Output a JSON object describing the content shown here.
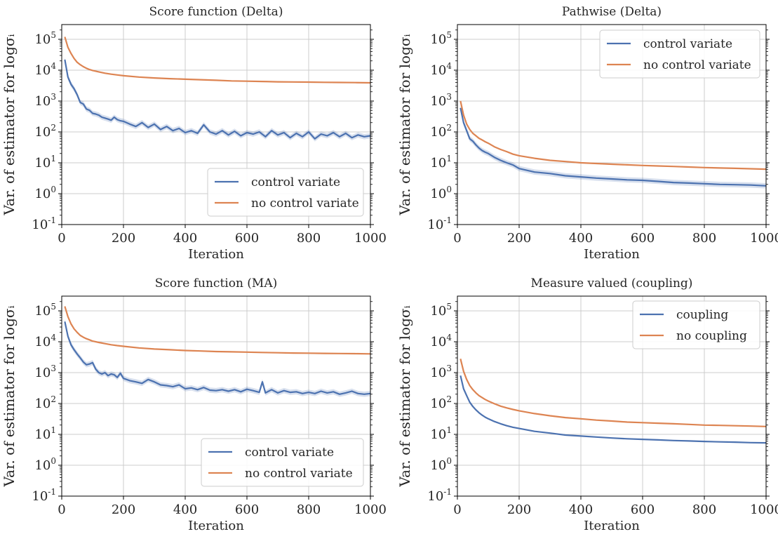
{
  "colors": {
    "control": "#4c72b0",
    "nocontrol": "#dd8452"
  },
  "chart_data": [
    {
      "type": "line",
      "title": "Score function (Delta)",
      "xlabel": "Iteration",
      "ylabel": "Var. of estimator for logσᵢ",
      "xlim": [
        0,
        1000
      ],
      "ylim": [
        0.1,
        300000
      ],
      "yscale": "log",
      "xticks": [
        0,
        200,
        400,
        600,
        800,
        1000
      ],
      "yticks": [
        {
          "base": "10",
          "exp": "-1",
          "v": 0.1
        },
        {
          "base": "10",
          "exp": "0",
          "v": 1
        },
        {
          "base": "10",
          "exp": "1",
          "v": 10
        },
        {
          "base": "10",
          "exp": "2",
          "v": 100
        },
        {
          "base": "10",
          "exp": "3",
          "v": 1000
        },
        {
          "base": "10",
          "exp": "4",
          "v": 10000
        },
        {
          "base": "10",
          "exp": "5",
          "v": 100000
        }
      ],
      "grid": true,
      "legend_position": "lower-right",
      "series": [
        {
          "name": "control variate",
          "color_key": "control",
          "band": true,
          "x": [
            10,
            20,
            30,
            40,
            50,
            60,
            70,
            80,
            90,
            100,
            110,
            120,
            130,
            140,
            150,
            160,
            170,
            180,
            190,
            200,
            220,
            240,
            260,
            280,
            300,
            320,
            340,
            360,
            380,
            400,
            420,
            440,
            460,
            480,
            500,
            520,
            540,
            560,
            580,
            600,
            620,
            640,
            660,
            680,
            700,
            720,
            740,
            760,
            780,
            800,
            820,
            840,
            860,
            880,
            900,
            920,
            940,
            960,
            980,
            1000
          ],
          "y": [
            22000,
            6000,
            3500,
            2500,
            1600,
            900,
            800,
            550,
            500,
            400,
            380,
            350,
            300,
            280,
            260,
            240,
            300,
            250,
            230,
            220,
            180,
            150,
            200,
            140,
            180,
            120,
            150,
            110,
            130,
            95,
            110,
            90,
            170,
            100,
            85,
            110,
            80,
            105,
            75,
            95,
            85,
            100,
            70,
            110,
            80,
            95,
            65,
            90,
            70,
            100,
            60,
            85,
            75,
            95,
            70,
            90,
            65,
            80,
            70,
            75
          ]
        },
        {
          "name": "no control variate",
          "color_key": "nocontrol",
          "x": [
            10,
            20,
            30,
            40,
            50,
            60,
            70,
            80,
            90,
            100,
            120,
            140,
            160,
            180,
            200,
            250,
            300,
            350,
            400,
            450,
            500,
            550,
            600,
            650,
            700,
            750,
            800,
            850,
            900,
            950,
            1000
          ],
          "y": [
            120000,
            55000,
            35000,
            24000,
            18000,
            15000,
            13000,
            11500,
            10500,
            9800,
            8800,
            8000,
            7400,
            7000,
            6600,
            6000,
            5600,
            5300,
            5100,
            4900,
            4700,
            4500,
            4400,
            4300,
            4200,
            4150,
            4100,
            4050,
            4000,
            3950,
            3900
          ]
        }
      ]
    },
    {
      "type": "line",
      "title": "Pathwise (Delta)",
      "xlabel": "Iteration",
      "ylabel": "Var. of estimator for logσᵢ",
      "xlim": [
        0,
        1000
      ],
      "ylim": [
        0.1,
        300000
      ],
      "yscale": "log",
      "xticks": [
        0,
        200,
        400,
        600,
        800,
        1000
      ],
      "yticks": [
        {
          "base": "10",
          "exp": "-1",
          "v": 0.1
        },
        {
          "base": "10",
          "exp": "0",
          "v": 1
        },
        {
          "base": "10",
          "exp": "1",
          "v": 10
        },
        {
          "base": "10",
          "exp": "2",
          "v": 100
        },
        {
          "base": "10",
          "exp": "3",
          "v": 1000
        },
        {
          "base": "10",
          "exp": "4",
          "v": 10000
        },
        {
          "base": "10",
          "exp": "5",
          "v": 100000
        }
      ],
      "grid": true,
      "legend_position": "upper-right",
      "series": [
        {
          "name": "control variate",
          "color_key": "control",
          "band": true,
          "x": [
            10,
            20,
            30,
            40,
            50,
            60,
            70,
            80,
            90,
            100,
            120,
            140,
            160,
            180,
            200,
            250,
            300,
            350,
            400,
            450,
            500,
            550,
            600,
            650,
            700,
            750,
            800,
            850,
            900,
            950,
            1000
          ],
          "y": [
            600,
            200,
            110,
            60,
            50,
            38,
            30,
            25,
            22,
            20,
            15,
            12,
            10,
            8.5,
            6.5,
            5,
            4.5,
            3.8,
            3.5,
            3.2,
            3,
            2.8,
            2.7,
            2.5,
            2.3,
            2.2,
            2.1,
            2,
            1.95,
            1.9,
            1.8
          ]
        },
        {
          "name": "no control variate",
          "color_key": "nocontrol",
          "x": [
            10,
            20,
            30,
            40,
            50,
            60,
            70,
            80,
            90,
            100,
            120,
            140,
            160,
            180,
            200,
            250,
            300,
            350,
            400,
            450,
            500,
            550,
            600,
            650,
            700,
            750,
            800,
            850,
            900,
            950,
            1000
          ],
          "y": [
            1000,
            350,
            180,
            120,
            90,
            75,
            62,
            55,
            48,
            43,
            33,
            27,
            23,
            19,
            17,
            14,
            12,
            11,
            10,
            9.5,
            9,
            8.6,
            8.2,
            7.9,
            7.6,
            7.3,
            7,
            6.8,
            6.6,
            6.4,
            6.2
          ]
        }
      ]
    },
    {
      "type": "line",
      "title": "Score function (MA)",
      "xlabel": "Iteration",
      "ylabel": "Var. of estimator for logσᵢ",
      "xlim": [
        0,
        1000
      ],
      "ylim": [
        0.1,
        300000
      ],
      "yscale": "log",
      "xticks": [
        0,
        200,
        400,
        600,
        800,
        1000
      ],
      "yticks": [
        {
          "base": "10",
          "exp": "-1",
          "v": 0.1
        },
        {
          "base": "10",
          "exp": "0",
          "v": 1
        },
        {
          "base": "10",
          "exp": "1",
          "v": 10
        },
        {
          "base": "10",
          "exp": "2",
          "v": 100
        },
        {
          "base": "10",
          "exp": "3",
          "v": 1000
        },
        {
          "base": "10",
          "exp": "4",
          "v": 10000
        },
        {
          "base": "10",
          "exp": "5",
          "v": 100000
        }
      ],
      "grid": true,
      "legend_position": "lower-right",
      "series": [
        {
          "name": "control variate",
          "color_key": "control",
          "band": true,
          "x": [
            10,
            20,
            30,
            40,
            50,
            60,
            70,
            80,
            90,
            100,
            110,
            120,
            130,
            140,
            150,
            160,
            170,
            180,
            190,
            200,
            220,
            240,
            260,
            280,
            300,
            320,
            340,
            360,
            380,
            400,
            420,
            440,
            460,
            480,
            500,
            520,
            540,
            560,
            580,
            600,
            620,
            640,
            650,
            660,
            680,
            700,
            720,
            740,
            760,
            780,
            800,
            820,
            840,
            860,
            880,
            900,
            920,
            940,
            960,
            980,
            1000
          ],
          "y": [
            45000,
            15000,
            8000,
            5500,
            4000,
            3000,
            2200,
            1800,
            1900,
            2100,
            1300,
            1000,
            900,
            1000,
            800,
            900,
            850,
            700,
            950,
            650,
            550,
            500,
            450,
            600,
            500,
            400,
            380,
            350,
            400,
            300,
            320,
            280,
            330,
            270,
            260,
            280,
            250,
            280,
            240,
            290,
            260,
            230,
            500,
            220,
            280,
            220,
            260,
            230,
            240,
            210,
            230,
            210,
            250,
            220,
            240,
            200,
            220,
            250,
            210,
            200,
            210
          ]
        },
        {
          "name": "no control variate",
          "color_key": "nocontrol",
          "x": [
            10,
            20,
            30,
            40,
            50,
            60,
            70,
            80,
            90,
            100,
            120,
            140,
            160,
            180,
            200,
            250,
            300,
            350,
            400,
            450,
            500,
            550,
            600,
            650,
            700,
            750,
            800,
            850,
            900,
            950,
            1000
          ],
          "y": [
            140000,
            65000,
            38000,
            26000,
            20000,
            16000,
            14000,
            12500,
            11500,
            10500,
            9500,
            8700,
            8000,
            7500,
            7100,
            6300,
            5800,
            5500,
            5200,
            5000,
            4800,
            4700,
            4600,
            4500,
            4400,
            4300,
            4250,
            4200,
            4150,
            4100,
            4050
          ]
        }
      ]
    },
    {
      "type": "line",
      "title": "Measure valued (coupling)",
      "xlabel": "Iteration",
      "ylabel": "Var. of estimator for logσᵢ",
      "xlim": [
        0,
        1000
      ],
      "ylim": [
        0.1,
        300000
      ],
      "yscale": "log",
      "xticks": [
        0,
        200,
        400,
        600,
        800,
        1000
      ],
      "yticks": [
        {
          "base": "10",
          "exp": "-1",
          "v": 0.1
        },
        {
          "base": "10",
          "exp": "0",
          "v": 1
        },
        {
          "base": "10",
          "exp": "1",
          "v": 10
        },
        {
          "base": "10",
          "exp": "2",
          "v": 100
        },
        {
          "base": "10",
          "exp": "3",
          "v": 1000
        },
        {
          "base": "10",
          "exp": "4",
          "v": 10000
        },
        {
          "base": "10",
          "exp": "5",
          "v": 100000
        }
      ],
      "grid": true,
      "legend_position": "upper-right",
      "series": [
        {
          "name": "coupling",
          "color_key": "control",
          "band": false,
          "x": [
            10,
            20,
            30,
            40,
            50,
            60,
            70,
            80,
            90,
            100,
            120,
            140,
            160,
            180,
            200,
            250,
            300,
            350,
            400,
            450,
            500,
            550,
            600,
            650,
            700,
            750,
            800,
            850,
            900,
            950,
            1000
          ],
          "y": [
            800,
            300,
            180,
            110,
            80,
            62,
            50,
            42,
            36,
            32,
            26,
            22,
            19,
            17,
            15.5,
            12.5,
            11,
            9.5,
            8.8,
            8.2,
            7.6,
            7.2,
            6.9,
            6.6,
            6.3,
            6.1,
            5.9,
            5.7,
            5.6,
            5.4,
            5.3
          ]
        },
        {
          "name": "no coupling",
          "color_key": "nocontrol",
          "x": [
            10,
            20,
            30,
            40,
            50,
            60,
            70,
            80,
            90,
            100,
            120,
            140,
            160,
            180,
            200,
            250,
            300,
            350,
            400,
            450,
            500,
            550,
            600,
            650,
            700,
            750,
            800,
            850,
            900,
            950,
            1000
          ],
          "y": [
            2800,
            1100,
            600,
            380,
            280,
            220,
            180,
            155,
            135,
            120,
            98,
            82,
            72,
            64,
            58,
            47,
            40,
            35,
            32,
            29,
            27,
            25,
            24,
            23,
            22,
            21,
            20,
            19.5,
            19,
            18.5,
            18
          ]
        }
      ]
    }
  ]
}
